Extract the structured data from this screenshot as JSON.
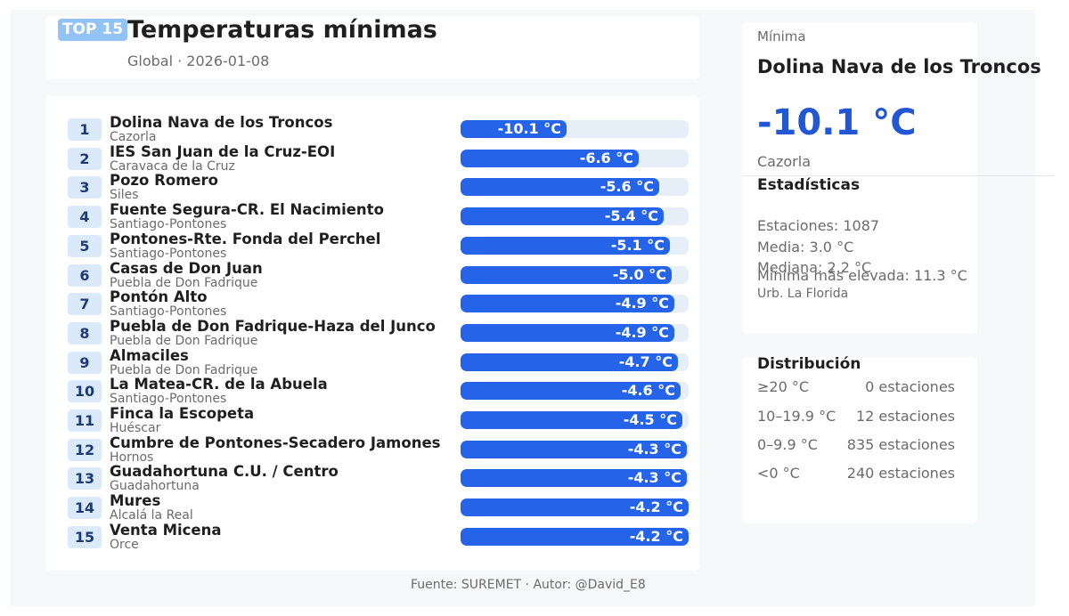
{
  "header": {
    "badge": "TOP 15",
    "title": "Temperaturas mínimas",
    "subtitle": "Global · 2026-01-08"
  },
  "chart_data": {
    "type": "bar",
    "orientation": "horizontal",
    "unit": "°C",
    "xlim": [
      0,
      -12
    ],
    "categories": [
      "Dolina Nava de los Troncos",
      "IES San Juan de la Cruz-EOI",
      "Pozo Romero",
      "Fuente Segura-CR. El Nacimiento",
      "Pontones-Rte. Fonda del Perchel",
      "Casas de Don Juan",
      "Pontón Alto",
      "Puebla de Don Fadrique-Haza del Junco",
      "Almaciles",
      "La Matea-CR. de la Abuela",
      "Finca la Escopeta",
      "Cumbre de Pontones-Secadero Jamones",
      "Guadahortuna C.U. / Centro",
      "Mures",
      "Venta Micena"
    ],
    "values": [
      -10.1,
      -6.6,
      -5.6,
      -5.4,
      -5.1,
      -5.0,
      -4.9,
      -4.9,
      -4.7,
      -4.6,
      -4.5,
      -4.3,
      -4.3,
      -4.2,
      -4.2
    ],
    "rows": [
      {
        "rank": "1",
        "name": "Dolina Nava de los Troncos",
        "municipality": "Cazorla",
        "label": "-10.1 °C",
        "value": -10.1
      },
      {
        "rank": "2",
        "name": "IES San Juan de la Cruz-EOI",
        "municipality": "Caravaca de la Cruz",
        "label": "-6.6 °C",
        "value": -6.6
      },
      {
        "rank": "3",
        "name": "Pozo Romero",
        "municipality": "Siles",
        "label": "-5.6 °C",
        "value": -5.6
      },
      {
        "rank": "4",
        "name": "Fuente Segura-CR. El Nacimiento",
        "municipality": "Santiago-Pontones",
        "label": "-5.4 °C",
        "value": -5.4
      },
      {
        "rank": "5",
        "name": "Pontones-Rte. Fonda del Perchel",
        "municipality": "Santiago-Pontones",
        "label": "-5.1 °C",
        "value": -5.1
      },
      {
        "rank": "6",
        "name": "Casas de Don Juan",
        "municipality": "Puebla de Don Fadrique",
        "label": "-5.0 °C",
        "value": -5.0
      },
      {
        "rank": "7",
        "name": "Pontón Alto",
        "municipality": "Santiago-Pontones",
        "label": "-4.9 °C",
        "value": -4.9
      },
      {
        "rank": "8",
        "name": "Puebla de Don Fadrique-Haza del Junco",
        "municipality": "Puebla de Don Fadrique",
        "label": "-4.9 °C",
        "value": -4.9
      },
      {
        "rank": "9",
        "name": "Almaciles",
        "municipality": "Puebla de Don Fadrique",
        "label": "-4.7 °C",
        "value": -4.7
      },
      {
        "rank": "10",
        "name": "La Matea-CR. de la Abuela",
        "municipality": "Santiago-Pontones",
        "label": "-4.6 °C",
        "value": -4.6
      },
      {
        "rank": "11",
        "name": "Finca la Escopeta",
        "municipality": "Huéscar",
        "label": "-4.5 °C",
        "value": -4.5
      },
      {
        "rank": "12",
        "name": "Cumbre de Pontones-Secadero Jamones",
        "municipality": "Hornos",
        "label": "-4.3 °C",
        "value": -4.3
      },
      {
        "rank": "13",
        "name": "Guadahortuna C.U. / Centro",
        "municipality": "Guadahortuna",
        "label": "-4.3 °C",
        "value": -4.3
      },
      {
        "rank": "14",
        "name": "Mures",
        "municipality": "Alcalá la Real",
        "label": "-4.2 °C",
        "value": -4.2
      },
      {
        "rank": "15",
        "name": "Venta Micena",
        "municipality": "Orce",
        "label": "-4.2 °C",
        "value": -4.2
      }
    ],
    "colors": {
      "bar": "#2563e8",
      "track": "#e6eef8",
      "badge": "#93c2f5",
      "rank_bg": "#dbeafa",
      "accent": "#2156d4"
    }
  },
  "minimum": {
    "label": "Mínima",
    "station": "Dolina Nava de los Troncos",
    "value": "-10.1 °C",
    "municipality": "Cazorla"
  },
  "stats": {
    "title": "Estadísticas",
    "lines": [
      "Estaciones: 1087",
      "Media:   3.0 °C",
      "Mediana: 2.2 °C",
      "Mínima más elevada: 11.3 °C"
    ],
    "highest_min_station": "Urb. La Florida"
  },
  "distribution": {
    "title": "Distribución",
    "rows": [
      {
        "range": "≥20 °C",
        "count": "0 estaciones"
      },
      {
        "range": "10–19.9 °C",
        "count": "12 estaciones"
      },
      {
        "range": "0–9.9 °C",
        "count": "835 estaciones"
      },
      {
        "range": "<0 °C",
        "count": "240 estaciones"
      }
    ]
  },
  "footer": "Fuente: SUREMET · Autor: @David_E8"
}
